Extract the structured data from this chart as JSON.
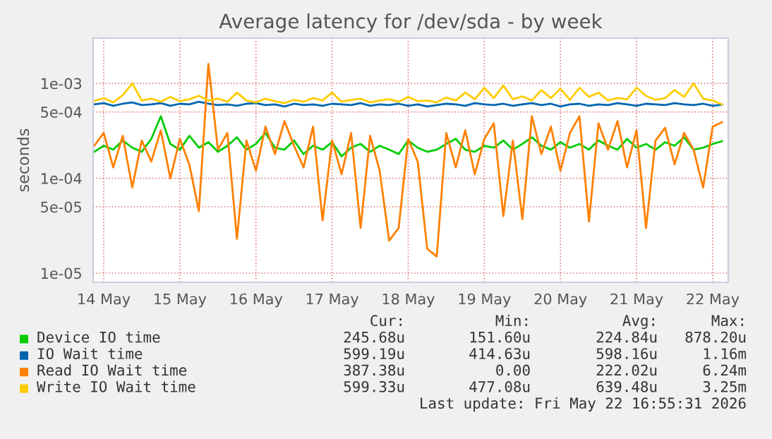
{
  "chart_data": {
    "type": "line",
    "title": "Average latency for /dev/sda - by week",
    "ylabel": "seconds",
    "log": true,
    "grid": true,
    "legend": "bottom",
    "marker": "none",
    "line_style": "solid",
    "x": [
      "2026-05-14T09:00",
      "2026-05-14T12:00",
      "2026-05-14T15:00",
      "2026-05-14T18:00",
      "2026-05-14T21:00",
      "2026-05-15T00:00",
      "2026-05-15T03:00",
      "2026-05-15T06:00",
      "2026-05-15T09:00",
      "2026-05-15T12:00",
      "2026-05-15T15:00",
      "2026-05-15T18:00",
      "2026-05-15T21:00",
      "2026-05-16T00:00",
      "2026-05-16T03:00",
      "2026-05-16T06:00",
      "2026-05-16T09:00",
      "2026-05-16T12:00",
      "2026-05-16T15:00",
      "2026-05-16T18:00",
      "2026-05-16T21:00",
      "2026-05-17T00:00",
      "2026-05-17T03:00",
      "2026-05-17T06:00",
      "2026-05-17T09:00",
      "2026-05-17T12:00",
      "2026-05-17T15:00",
      "2026-05-17T18:00",
      "2026-05-17T21:00",
      "2026-05-18T00:00",
      "2026-05-18T03:00",
      "2026-05-18T06:00",
      "2026-05-18T09:00",
      "2026-05-18T12:00",
      "2026-05-18T15:00",
      "2026-05-18T18:00",
      "2026-05-18T21:00",
      "2026-05-19T00:00",
      "2026-05-19T03:00",
      "2026-05-19T06:00",
      "2026-05-19T09:00",
      "2026-05-19T12:00",
      "2026-05-19T15:00",
      "2026-05-19T18:00",
      "2026-05-19T21:00",
      "2026-05-20T00:00",
      "2026-05-20T03:00",
      "2026-05-20T06:00",
      "2026-05-20T09:00",
      "2026-05-20T12:00",
      "2026-05-20T15:00",
      "2026-05-20T18:00",
      "2026-05-20T21:00",
      "2026-05-21T00:00",
      "2026-05-21T03:00",
      "2026-05-21T06:00",
      "2026-05-21T09:00",
      "2026-05-21T12:00",
      "2026-05-21T15:00",
      "2026-05-21T18:00",
      "2026-05-21T21:00",
      "2026-05-22T00:00",
      "2026-05-22T03:00",
      "2026-05-22T06:00",
      "2026-05-22T09:00",
      "2026-05-22T12:00",
      "2026-05-22T15:00"
    ],
    "xlim": [
      "2026-05-14T08:40",
      "2026-05-22T16:55"
    ],
    "xticks": [
      {
        "value": "2026-05-14T12:00",
        "label": "14 May"
      },
      {
        "value": "2026-05-15T12:00",
        "label": "15 May"
      },
      {
        "value": "2026-05-16T12:00",
        "label": "16 May"
      },
      {
        "value": "2026-05-17T12:00",
        "label": "17 May"
      },
      {
        "value": "2026-05-18T12:00",
        "label": "18 May"
      },
      {
        "value": "2026-05-19T12:00",
        "label": "19 May"
      },
      {
        "value": "2026-05-20T12:00",
        "label": "20 May"
      },
      {
        "value": "2026-05-21T12:00",
        "label": "21 May"
      },
      {
        "value": "2026-05-22T12:00",
        "label": "22 May"
      }
    ],
    "ylim": [
      8e-06,
      0.003
    ],
    "yticks": [
      {
        "value": 1e-05,
        "label": "1e-05"
      },
      {
        "value": 5e-05,
        "label": "5e-05"
      },
      {
        "value": 0.0001,
        "label": "1e-04"
      },
      {
        "value": 0.0005,
        "label": "5e-04"
      },
      {
        "value": 0.001,
        "label": "1e-03"
      }
    ],
    "series": [
      {
        "name": "Device IO time",
        "color": "#00cc00",
        "values": [
          0.00019,
          0.00022,
          0.0002,
          0.00025,
          0.00021,
          0.00019,
          0.00026,
          0.00045,
          0.00023,
          0.0002,
          0.00028,
          0.00021,
          0.00024,
          0.00019,
          0.00022,
          0.00027,
          0.0002,
          0.00023,
          0.0003,
          0.00021,
          0.0002,
          0.00025,
          0.00018,
          0.00022,
          0.0002,
          0.00024,
          0.00017,
          0.00021,
          0.00023,
          0.00019,
          0.00022,
          0.0002,
          0.00018,
          0.00025,
          0.00021,
          0.00019,
          0.0002,
          0.00023,
          0.00026,
          0.0002,
          0.00019,
          0.00022,
          0.00021,
          0.00025,
          0.0002,
          0.00023,
          0.00027,
          0.00022,
          0.0002,
          0.00024,
          0.00021,
          0.00023,
          0.0002,
          0.00025,
          0.00022,
          0.0002,
          0.00026,
          0.00021,
          0.00023,
          0.0002,
          0.00024,
          0.00022,
          0.00027,
          0.0002,
          0.00021,
          0.00023,
          0.000246
        ]
      },
      {
        "name": "IO Wait time",
        "color": "#0066b3",
        "values": [
          0.0006,
          0.00062,
          0.00058,
          0.00061,
          0.00063,
          0.00059,
          0.0006,
          0.00062,
          0.00058,
          0.00061,
          0.0006,
          0.00064,
          0.00061,
          0.00059,
          0.0006,
          0.00058,
          0.00061,
          0.00062,
          0.00059,
          0.0006,
          0.00057,
          0.00061,
          0.00059,
          0.0006,
          0.00058,
          0.00061,
          0.0006,
          0.00059,
          0.00062,
          0.00058,
          0.0006,
          0.00059,
          0.00061,
          0.00058,
          0.0006,
          0.00057,
          0.00059,
          0.00061,
          0.0006,
          0.00058,
          0.00062,
          0.0006,
          0.00059,
          0.00061,
          0.00058,
          0.0006,
          0.00062,
          0.00059,
          0.00061,
          0.00057,
          0.0006,
          0.00061,
          0.00058,
          0.0006,
          0.00059,
          0.00062,
          0.0006,
          0.00058,
          0.00061,
          0.0006,
          0.00059,
          0.00062,
          0.0006,
          0.00059,
          0.00061,
          0.00058,
          0.000599
        ]
      },
      {
        "name": "Read IO Wait time",
        "color": "#ff8000",
        "values": [
          0.00022,
          0.0003,
          0.00013,
          0.00028,
          8e-05,
          0.00025,
          0.00015,
          0.00032,
          0.0001,
          0.00026,
          0.00014,
          4.5e-05,
          0.0016,
          0.0002,
          0.0003,
          2.3e-05,
          0.00025,
          0.00012,
          0.00035,
          0.00018,
          0.0004,
          0.00022,
          0.00013,
          0.00035,
          3.6e-05,
          0.00025,
          0.00011,
          0.0003,
          3e-05,
          0.00028,
          0.00012,
          2.2e-05,
          3e-05,
          0.00026,
          0.00015,
          1.8e-05,
          1.5e-05,
          0.0003,
          0.00013,
          0.00032,
          0.00011,
          0.00026,
          0.00038,
          4e-05,
          0.00025,
          3.7e-05,
          0.00045,
          0.00018,
          0.00035,
          0.00012,
          0.0003,
          0.00045,
          3.5e-05,
          0.00038,
          0.0002,
          0.0004,
          0.00013,
          0.00032,
          3e-05,
          0.00025,
          0.00034,
          0.00014,
          0.0003,
          0.0002,
          8e-05,
          0.00035,
          0.00039
        ]
      },
      {
        "name": "Write IO Wait time",
        "color": "#ffcc00",
        "values": [
          0.00065,
          0.0007,
          0.00063,
          0.00075,
          0.001,
          0.00066,
          0.00069,
          0.00064,
          0.00072,
          0.00065,
          0.00068,
          0.00074,
          0.00066,
          0.00069,
          0.00064,
          0.0008,
          0.00066,
          0.00063,
          0.00069,
          0.00065,
          0.00062,
          0.00067,
          0.00064,
          0.0007,
          0.00066,
          0.0008,
          0.00064,
          0.00067,
          0.00069,
          0.00063,
          0.00066,
          0.00068,
          0.00064,
          0.00072,
          0.00065,
          0.00066,
          0.00063,
          0.00071,
          0.00066,
          0.0008,
          0.00068,
          0.0009,
          0.0007,
          0.00095,
          0.00068,
          0.00073,
          0.00066,
          0.00085,
          0.0007,
          0.00088,
          0.00067,
          0.0009,
          0.00072,
          0.0008,
          0.00066,
          0.0007,
          0.00068,
          0.0009,
          0.00074,
          0.00067,
          0.0007,
          0.00085,
          0.00072,
          0.001,
          0.00069,
          0.00066,
          0.000599
        ]
      }
    ],
    "annotations": [
      "Cur:",
      "Min:",
      "Avg:",
      "Max:",
      "245.68u",
      "151.60u",
      "224.84u",
      "878.20u",
      "599.19u",
      "414.63u",
      "598.16u",
      "1.16m",
      "387.38u",
      "0.00",
      "222.02u",
      "6.24m",
      "599.33u",
      "477.08u",
      "639.48u",
      "3.25m",
      "Last update: Fri May 22 16:55:31 2026"
    ]
  }
}
